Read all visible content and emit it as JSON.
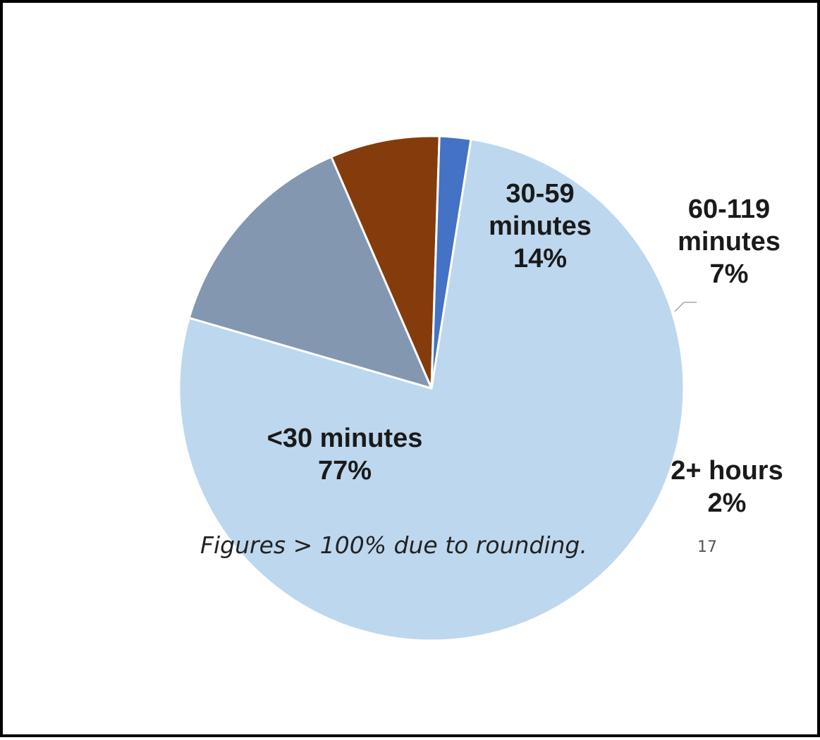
{
  "chart_data": {
    "type": "pie",
    "slices": [
      {
        "label_lines": [
          "<30 minutes",
          "77%"
        ],
        "value": 77,
        "color": "#bdd7ee"
      },
      {
        "label_lines": [
          "30-59",
          "minutes",
          "14%"
        ],
        "value": 14,
        "color": "#8497b0"
      },
      {
        "label_lines": [
          "60-119",
          "minutes",
          "7%"
        ],
        "value": 7,
        "color": "#843c0c"
      },
      {
        "label_lines": [
          "2+ hours",
          "2%"
        ],
        "value": 2,
        "color": "#4472c4"
      }
    ]
  },
  "footnote": "Figures > 100% due to rounding.",
  "page_number": "17"
}
